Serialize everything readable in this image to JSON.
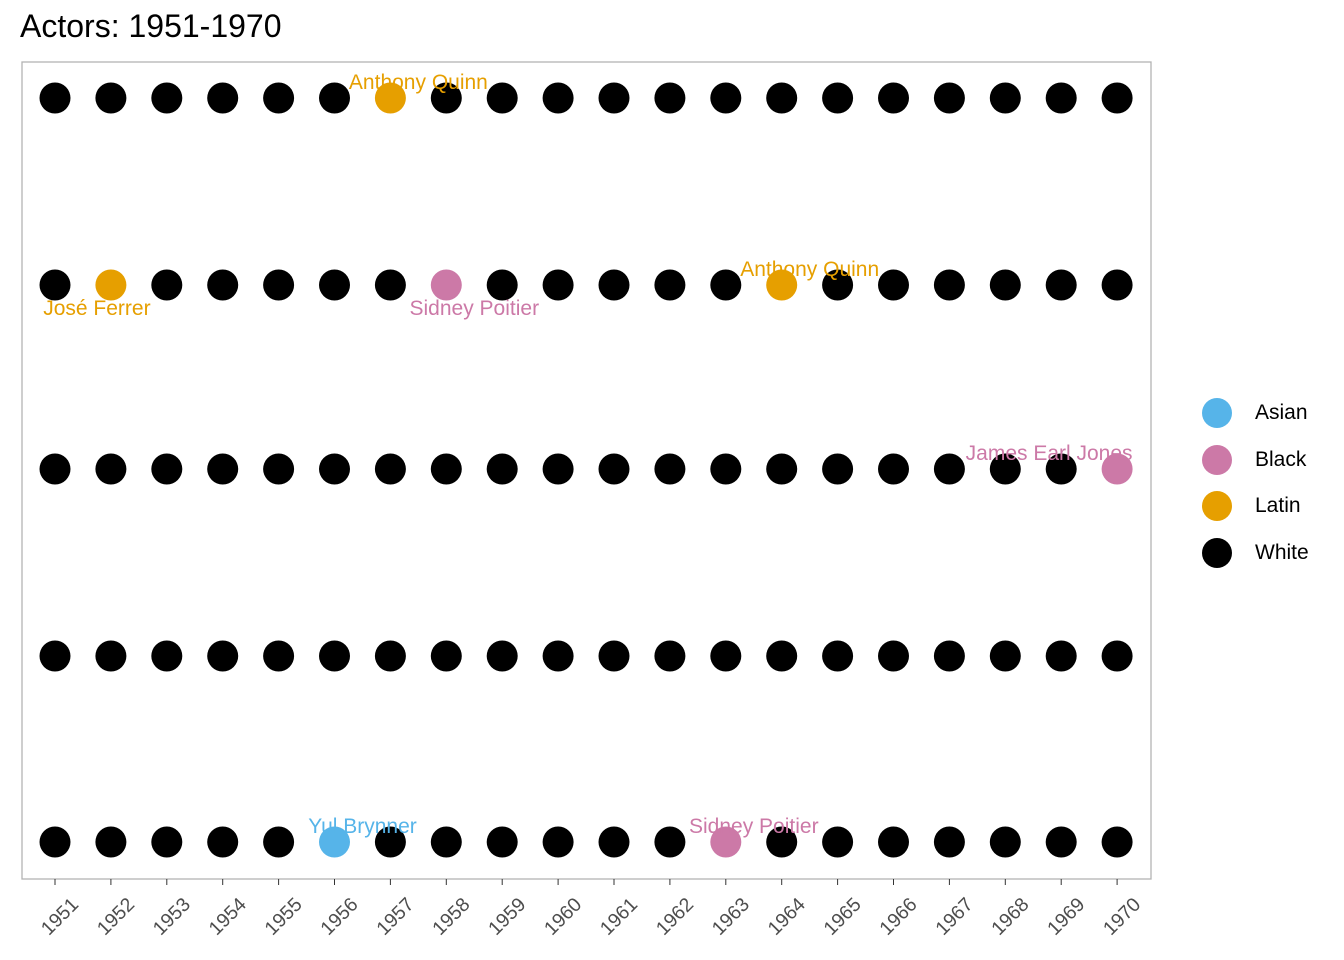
{
  "chart_data": {
    "type": "scatter",
    "title": "Actors: 1951-1970",
    "xlabel": "",
    "ylabel": "",
    "x_categories": [
      "1951",
      "1952",
      "1953",
      "1954",
      "1955",
      "1956",
      "1957",
      "1958",
      "1959",
      "1960",
      "1961",
      "1962",
      "1963",
      "1964",
      "1965",
      "1966",
      "1967",
      "1968",
      "1969",
      "1970"
    ],
    "rows": 5,
    "grid": false,
    "legend_position": "right",
    "legend": [
      {
        "name": "Asian",
        "color": "#56B4E9"
      },
      {
        "name": "Black",
        "color": "#CC79A7"
      },
      {
        "name": "Latin",
        "color": "#E69F00"
      },
      {
        "name": "White",
        "color": "#000000"
      }
    ],
    "default_group": "White",
    "highlighted_points": [
      {
        "x": "1957",
        "row": 1,
        "group": "Latin",
        "label": "Anthony Quinn",
        "label_pos": "above"
      },
      {
        "x": "1952",
        "row": 2,
        "group": "Latin",
        "label": "José Ferrer",
        "label_pos": "below"
      },
      {
        "x": "1958",
        "row": 2,
        "group": "Black",
        "label": "Sidney Poitier",
        "label_pos": "below"
      },
      {
        "x": "1964",
        "row": 2,
        "group": "Latin",
        "label": "Anthony Quinn",
        "label_pos": "above"
      },
      {
        "x": "1970",
        "row": 3,
        "group": "Black",
        "label": "James Earl Jones",
        "label_pos": "above"
      },
      {
        "x": "1956",
        "row": 5,
        "group": "Asian",
        "label": "Yul Brynner",
        "label_pos": "above"
      },
      {
        "x": "1963",
        "row": 5,
        "group": "Black",
        "label": "Sidney Poitier",
        "label_pos": "above"
      }
    ]
  }
}
